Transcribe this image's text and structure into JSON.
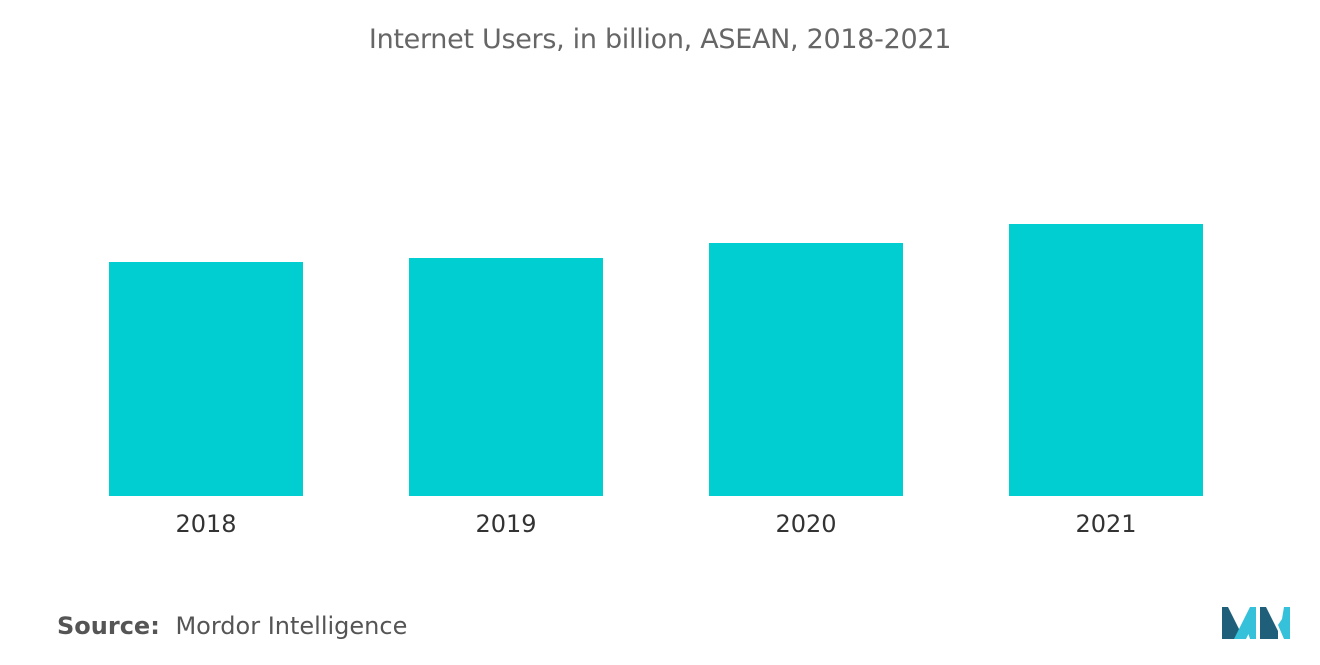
{
  "chart_data": {
    "type": "bar",
    "title": "Internet Users, in billion, ASEAN, 2018-2021",
    "categories": [
      "2018",
      "2019",
      "2020",
      "2021"
    ],
    "values": [
      0.234,
      0.238,
      0.253,
      0.272
    ],
    "ylim": [
      0,
      0.4
    ],
    "xlabel": "",
    "ylabel": "",
    "grid": false,
    "bar_color": "#00ced1"
  },
  "source": {
    "label": "Source:",
    "text": "Mordor Intelligence"
  },
  "colors": {
    "logo_dark": "#1f5f7a",
    "logo_light": "#35c1d9"
  }
}
